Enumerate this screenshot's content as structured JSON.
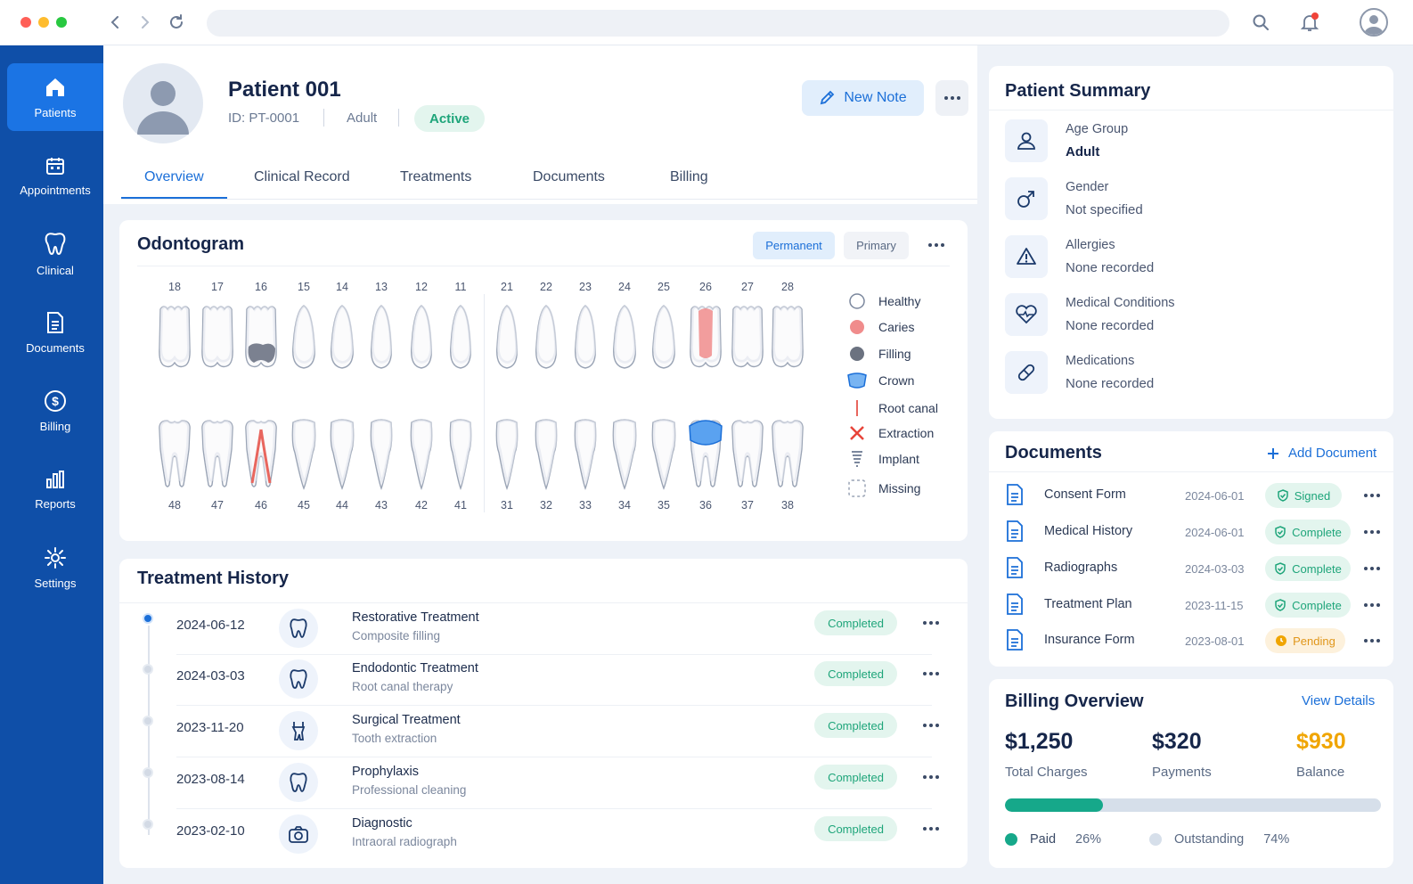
{
  "browser": {
    "window_controls": [
      "close",
      "minimize",
      "maximize"
    ],
    "address": ""
  },
  "sidebar": {
    "items": [
      {
        "label": "Patients",
        "icon": "home-icon",
        "active": true
      },
      {
        "label": "Appointments",
        "icon": "calendar-icon"
      },
      {
        "label": "Clinical",
        "icon": "tooth-icon"
      },
      {
        "label": "Documents",
        "icon": "document-icon"
      },
      {
        "label": "Billing",
        "icon": "dollar-icon"
      },
      {
        "label": "Reports",
        "icon": "bar-chart-icon"
      },
      {
        "label": "Settings",
        "icon": "gear-icon"
      }
    ]
  },
  "patient": {
    "name": "Patient 001",
    "id": "ID: PT-0001",
    "age_group": "Adult",
    "status": "Active"
  },
  "header": {
    "new_note": "New Note"
  },
  "tabs": [
    "Overview",
    "Clinical Record",
    "Treatments",
    "Documents",
    "Billing"
  ],
  "odontogram": {
    "title": "Odontogram",
    "views": [
      "Permanent",
      "Primary"
    ],
    "active_view": "Permanent",
    "upper": [
      "18",
      "17",
      "16",
      "15",
      "14",
      "13",
      "12",
      "11",
      "21",
      "22",
      "23",
      "24",
      "25",
      "26",
      "27",
      "28"
    ],
    "lower": [
      "48",
      "47",
      "46",
      "45",
      "44",
      "43",
      "42",
      "41",
      "31",
      "32",
      "33",
      "34",
      "35",
      "36",
      "37",
      "38"
    ],
    "conditions": {
      "16": "Filling",
      "26": "Caries",
      "46": "Root canal",
      "36": "Crown"
    },
    "legend": [
      "Healthy",
      "Caries",
      "Filling",
      "Crown",
      "Root canal",
      "Extraction",
      "Implant",
      "Missing"
    ]
  },
  "treatment_history": {
    "title": "Treatment History",
    "items": [
      {
        "date": "2024-06-12",
        "title": "Restorative Treatment",
        "subtitle": "Composite filling",
        "status": "Completed",
        "icon": "tooth-icon"
      },
      {
        "date": "2024-03-03",
        "title": "Endodontic Treatment",
        "subtitle": "Root canal therapy",
        "status": "Completed",
        "icon": "tooth-icon"
      },
      {
        "date": "2023-11-20",
        "title": "Surgical Treatment",
        "subtitle": "Tooth extraction",
        "status": "Completed",
        "icon": "extraction-icon"
      },
      {
        "date": "2023-08-14",
        "title": "Prophylaxis",
        "subtitle": "Professional cleaning",
        "status": "Completed",
        "icon": "tooth-icon"
      },
      {
        "date": "2023-02-10",
        "title": "Diagnostic",
        "subtitle": "Intraoral radiograph",
        "status": "Completed",
        "icon": "camera-icon"
      }
    ]
  },
  "summary": {
    "title": "Patient Summary",
    "items": [
      {
        "label": "Age Group",
        "value": "Adult",
        "icon": "person-icon"
      },
      {
        "label": "Gender",
        "value": "Not specified",
        "icon": "gender-icon"
      },
      {
        "label": "Allergies",
        "value": "None recorded",
        "icon": "warning-icon"
      },
      {
        "label": "Medical Conditions",
        "value": "None recorded",
        "icon": "heart-pulse-icon"
      },
      {
        "label": "Medications",
        "value": "None recorded",
        "icon": "pill-icon"
      }
    ]
  },
  "documents": {
    "title": "Documents",
    "add_label": "Add Document",
    "items": [
      {
        "name": "Consent Form",
        "date": "2024-06-01",
        "status": "Signed"
      },
      {
        "name": "Medical History",
        "date": "2024-06-01",
        "status": "Complete"
      },
      {
        "name": "Radiographs",
        "date": "2024-03-03",
        "status": "Complete"
      },
      {
        "name": "Treatment Plan",
        "date": "2023-11-15",
        "status": "Complete"
      },
      {
        "name": "Insurance Form",
        "date": "2023-08-01",
        "status": "Pending"
      }
    ]
  },
  "billing": {
    "title": "Billing Overview",
    "view_details": "View Details",
    "total": "$1,250",
    "total_label": "Total Charges",
    "payments": "$320",
    "payments_label": "Payments",
    "balance": "$930",
    "balance_label": "Balance",
    "paid_label": "Paid",
    "paid_pct": "26%",
    "outstanding_label": "Outstanding",
    "outstanding_pct": "74%",
    "paid_fraction": 0.26
  },
  "colors": {
    "primary": "#1b6fd8",
    "sidebar": "#0f4fa8",
    "success": "#1ea57a",
    "warning": "#f0a500",
    "caries": "#f08c8c",
    "filling": "#6b7280"
  }
}
